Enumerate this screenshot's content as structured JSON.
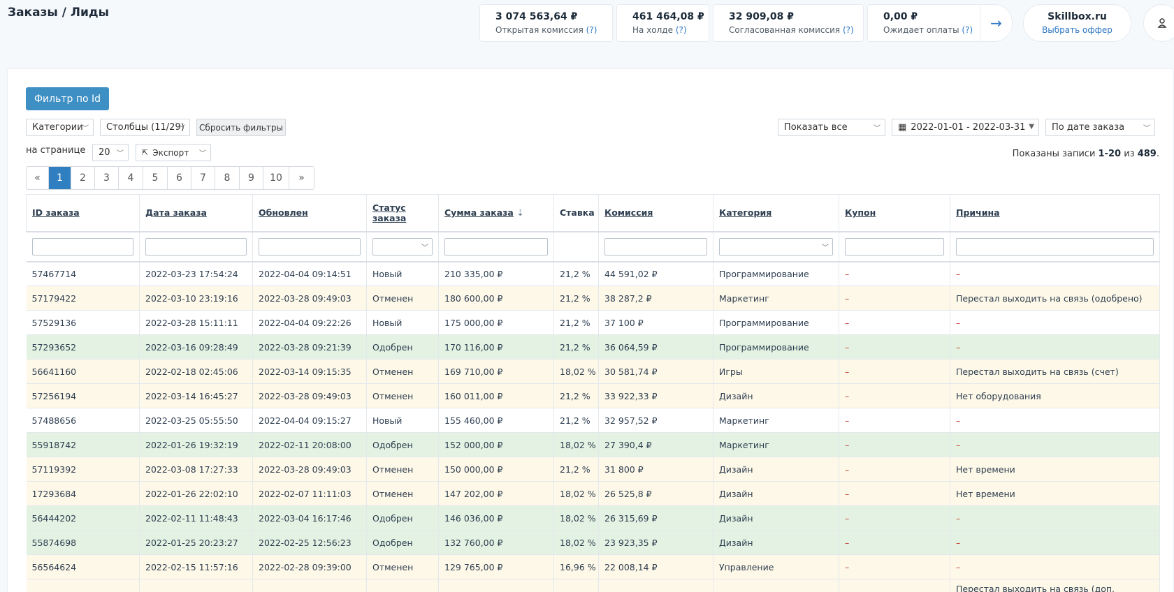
{
  "header": {
    "title": "Заказы / Лиды"
  },
  "stats": {
    "open_commission": {
      "value": "3 074 563,64 ₽",
      "label": "Открытая комиссия",
      "help": "(?)"
    },
    "on_hold": {
      "value": "461 464,08 ₽",
      "label": "На холде",
      "help": "(?)"
    },
    "approved_commission": {
      "value": "32 909,08 ₽",
      "label": "Согласованная комиссия",
      "help": "(?)"
    },
    "awaiting_payment": {
      "value": "0,00 ₽",
      "label": "Ожидает оплаты",
      "help": "(?)"
    }
  },
  "offer": {
    "name": "Skillbox.ru",
    "link": "Выбрать оффер"
  },
  "toolbar": {
    "filter_id_button": "Фильтр по Id",
    "categories_select": "Категории",
    "columns_select": "Столбцы (11/29)",
    "reset_filters": "Сбросить фильтры",
    "show_all_select": "Показать все",
    "date_range": "2022-01-01 - 2022-03-31",
    "date_type_select": "По дате заказа",
    "per_page_label": "на странице",
    "per_page_value": "20",
    "export_button": "Экспорт"
  },
  "records": {
    "prefix": "Показаны записи ",
    "range": "1-20",
    "of": " из ",
    "total": "489",
    "suffix": "."
  },
  "pagination": [
    "«",
    "1",
    "2",
    "3",
    "4",
    "5",
    "6",
    "7",
    "8",
    "9",
    "10",
    "»"
  ],
  "table": {
    "columns": [
      "ID заказа",
      "Дата заказа",
      "Обновлен",
      "Статус заказа",
      "Сумма заказа",
      "Ставка",
      "Комиссия",
      "Категория",
      "Купон",
      "Причина"
    ],
    "rows": [
      {
        "status_type": "new",
        "cells": [
          "57467714",
          "2022-03-23 17:54:24",
          "2022-04-04 09:14:51",
          "Новый",
          "210 335,00 ₽",
          "21,2 %",
          "44 591,02 ₽",
          "Программирование",
          "–",
          "–"
        ]
      },
      {
        "status_type": "cancel",
        "cells": [
          "57179422",
          "2022-03-10 23:19:16",
          "2022-03-28 09:49:03",
          "Отменен",
          "180 600,00 ₽",
          "21,2 %",
          "38 287,2 ₽",
          "Маркетинг",
          "–",
          "Перестал выходить на связь (одобрено)"
        ]
      },
      {
        "status_type": "new",
        "cells": [
          "57529136",
          "2022-03-28 15:11:11",
          "2022-04-04 09:22:26",
          "Новый",
          "175 000,00 ₽",
          "21,2 %",
          "37 100 ₽",
          "Программирование",
          "–",
          "–"
        ]
      },
      {
        "status_type": "ok",
        "cells": [
          "57293652",
          "2022-03-16 09:28:49",
          "2022-03-28 09:21:39",
          "Одобрен",
          "170 116,00 ₽",
          "21,2 %",
          "36 064,59 ₽",
          "Программирование",
          "–",
          "–"
        ]
      },
      {
        "status_type": "cancel",
        "cells": [
          "56641160",
          "2022-02-18 02:45:06",
          "2022-03-14 09:15:35",
          "Отменен",
          "169 710,00 ₽",
          "18,02 %",
          "30 581,74 ₽",
          "Игры",
          "–",
          "Перестал выходить на связь (счет)"
        ]
      },
      {
        "status_type": "cancel",
        "cells": [
          "57256194",
          "2022-03-14 16:45:27",
          "2022-03-28 09:49:03",
          "Отменен",
          "160 011,00 ₽",
          "21,2 %",
          "33 922,33 ₽",
          "Дизайн",
          "–",
          "Нет оборудования"
        ]
      },
      {
        "status_type": "new",
        "cells": [
          "57488656",
          "2022-03-25 05:55:50",
          "2022-04-04 09:15:27",
          "Новый",
          "155 460,00 ₽",
          "21,2 %",
          "32 957,52 ₽",
          "Маркетинг",
          "–",
          "–"
        ]
      },
      {
        "status_type": "ok",
        "cells": [
          "55918742",
          "2022-01-26 19:32:19",
          "2022-02-11 20:08:00",
          "Одобрен",
          "152 000,00 ₽",
          "18,02 %",
          "27 390,4 ₽",
          "Маркетинг",
          "–",
          "–"
        ]
      },
      {
        "status_type": "cancel",
        "cells": [
          "57119392",
          "2022-03-08 17:27:33",
          "2022-03-28 09:49:03",
          "Отменен",
          "150 000,00 ₽",
          "21,2 %",
          "31 800 ₽",
          "Дизайн",
          "–",
          "Нет времени"
        ]
      },
      {
        "status_type": "cancel",
        "cells": [
          "17293684",
          "2022-01-26 22:02:10",
          "2022-02-07 11:11:03",
          "Отменен",
          "147 202,00 ₽",
          "18,02 %",
          "26 525,8 ₽",
          "Дизайн",
          "–",
          "Нет времени"
        ]
      },
      {
        "status_type": "ok",
        "cells": [
          "56444202",
          "2022-02-11 11:48:43",
          "2022-03-04 16:17:46",
          "Одобрен",
          "146 036,00 ₽",
          "18,02 %",
          "26 315,69 ₽",
          "Дизайн",
          "–",
          "–"
        ]
      },
      {
        "status_type": "ok",
        "cells": [
          "55874698",
          "2022-01-25 20:23:27",
          "2022-02-25 12:56:23",
          "Одобрен",
          "132 760,00 ₽",
          "18,02 %",
          "23 923,35 ₽",
          "Дизайн",
          "–",
          "–"
        ]
      },
      {
        "status_type": "cancel",
        "cells": [
          "56564624",
          "2022-02-15 11:57:16",
          "2022-02-28 09:39:00",
          "Отменен",
          "129 765,00 ₽",
          "16,96 %",
          "22 008,14 ₽",
          "Управление",
          "–",
          "–"
        ]
      },
      {
        "status_type": "cancel",
        "cells": [
          "",
          "",
          "",
          "",
          "",
          "",
          "",
          "",
          "",
          "Перестал выходить на связь (доп."
        ]
      }
    ]
  }
}
